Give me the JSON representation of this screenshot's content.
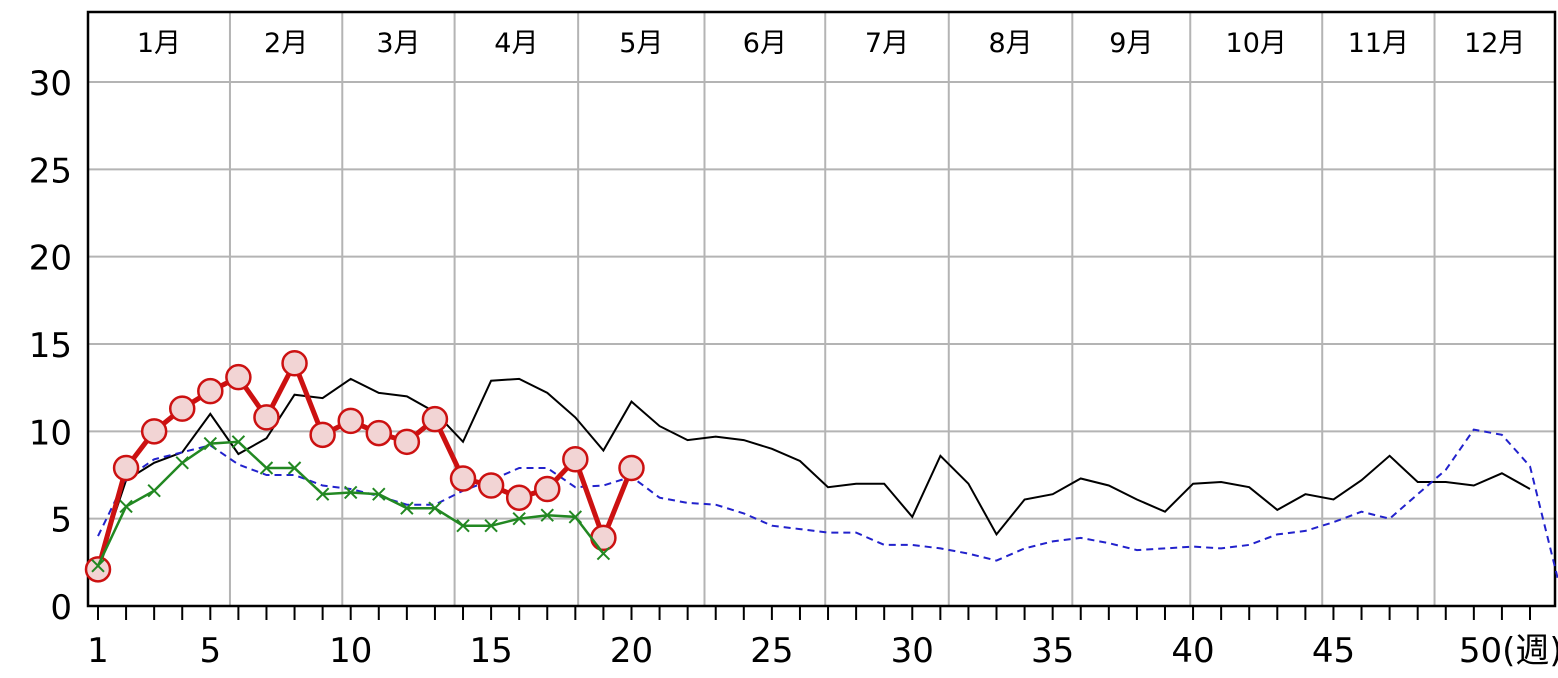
{
  "chart_data": {
    "type": "line",
    "title": "",
    "xlabel": "",
    "ylabel": "",
    "x_unit_suffix": "(週)",
    "xlim": [
      1,
      53
    ],
    "ylim": [
      0,
      30
    ],
    "y_ticks": [
      0,
      5,
      10,
      15,
      20,
      25,
      30
    ],
    "x_ticks": [
      1,
      5,
      10,
      15,
      20,
      25,
      30,
      35,
      40,
      45,
      50
    ],
    "grid": true,
    "months": [
      {
        "label": "1月",
        "start_week": 1,
        "end_week": 5.7
      },
      {
        "label": "2月",
        "start_week": 5.7,
        "end_week": 9.7
      },
      {
        "label": "3月",
        "start_week": 9.7,
        "end_week": 13.7
      },
      {
        "label": "4月",
        "start_week": 13.7,
        "end_week": 18.1
      },
      {
        "label": "5月",
        "start_week": 18.1,
        "end_week": 22.6
      },
      {
        "label": "6月",
        "start_week": 22.6,
        "end_week": 26.9
      },
      {
        "label": "7月",
        "start_week": 26.9,
        "end_week": 31.3
      },
      {
        "label": "8月",
        "start_week": 31.3,
        "end_week": 35.7
      },
      {
        "label": "9月",
        "start_week": 35.7,
        "end_week": 39.9
      },
      {
        "label": "10月",
        "start_week": 39.9,
        "end_week": 44.6
      },
      {
        "label": "11月",
        "start_week": 44.6,
        "end_week": 48.6
      },
      {
        "label": "12月",
        "start_week": 48.6,
        "end_week": 53
      }
    ],
    "series": [
      {
        "style": "solid-black",
        "color": "#000000",
        "x": [
          1,
          2,
          3,
          4,
          5,
          6,
          7,
          8,
          9,
          10,
          11,
          12,
          13,
          14,
          15,
          16,
          17,
          18,
          19,
          20,
          21,
          22,
          23,
          24,
          25,
          26,
          27,
          28,
          29,
          30,
          31,
          32,
          33,
          34,
          35,
          36,
          37,
          38,
          39,
          40,
          41,
          42,
          43,
          44,
          45,
          46,
          47,
          48,
          49,
          50,
          51,
          52
        ],
        "values": [
          2.4,
          7.2,
          8.2,
          8.8,
          11.0,
          8.7,
          9.6,
          12.1,
          11.9,
          13.0,
          12.2,
          12.0,
          11.1,
          9.4,
          12.9,
          13.0,
          12.2,
          10.8,
          8.9,
          11.7,
          10.3,
          9.5,
          9.7,
          9.5,
          9.0,
          8.3,
          6.8,
          7.0,
          7.0,
          5.1,
          8.6,
          7.0,
          4.1,
          6.1,
          6.4,
          7.3,
          6.9,
          6.1,
          5.4,
          7.0,
          7.1,
          6.8,
          5.5,
          6.4,
          6.1,
          7.2,
          8.6,
          7.1,
          7.1,
          6.9,
          7.6,
          6.7
        ]
      },
      {
        "style": "dashed-blue",
        "color": "#2222cc",
        "x": [
          1,
          2,
          3,
          4,
          5,
          6,
          7,
          8,
          9,
          10,
          11,
          12,
          13,
          14,
          15,
          16,
          17,
          18,
          19,
          20,
          21,
          22,
          23,
          24,
          25,
          26,
          27,
          28,
          29,
          30,
          31,
          32,
          33,
          34,
          35,
          36,
          37,
          38,
          39,
          40,
          41,
          42,
          43,
          44,
          45,
          46,
          47,
          48,
          49,
          50,
          51,
          52,
          53
        ],
        "values": [
          4.0,
          7.3,
          8.4,
          8.8,
          9.2,
          8.1,
          7.5,
          7.5,
          6.9,
          6.7,
          6.3,
          5.8,
          5.8,
          6.6,
          7.2,
          7.9,
          7.9,
          6.8,
          6.9,
          7.4,
          6.2,
          5.9,
          5.8,
          5.3,
          4.6,
          4.4,
          4.2,
          4.2,
          3.5,
          3.5,
          3.3,
          3.0,
          2.6,
          3.3,
          3.7,
          3.9,
          3.6,
          3.2,
          3.3,
          3.4,
          3.3,
          3.5,
          4.1,
          4.3,
          4.8,
          5.4,
          5.0,
          6.4,
          7.8,
          10.1,
          9.8,
          8.0,
          1.5
        ]
      },
      {
        "style": "red-circles",
        "color": "#cc1111",
        "x": [
          1,
          2,
          3,
          4,
          5,
          6,
          7,
          8,
          9,
          10,
          11,
          12,
          13,
          14,
          15,
          16,
          17,
          18,
          19,
          20
        ],
        "values": [
          2.1,
          7.9,
          10.0,
          11.3,
          12.3,
          13.1,
          10.8,
          13.9,
          9.8,
          10.6,
          9.9,
          9.4,
          10.7,
          7.3,
          6.9,
          6.2,
          6.7,
          8.4,
          3.9,
          7.9
        ]
      },
      {
        "style": "green-x",
        "color": "#228822",
        "x": [
          1,
          2,
          3,
          4,
          5,
          6,
          7,
          8,
          9,
          10,
          11,
          12,
          13,
          14,
          15,
          16,
          17,
          18,
          19
        ],
        "values": [
          2.3,
          5.7,
          6.6,
          8.2,
          9.3,
          9.4,
          7.9,
          7.9,
          6.4,
          6.5,
          6.4,
          5.6,
          5.6,
          4.6,
          4.6,
          5.0,
          5.2,
          5.1,
          3.0
        ]
      }
    ]
  }
}
